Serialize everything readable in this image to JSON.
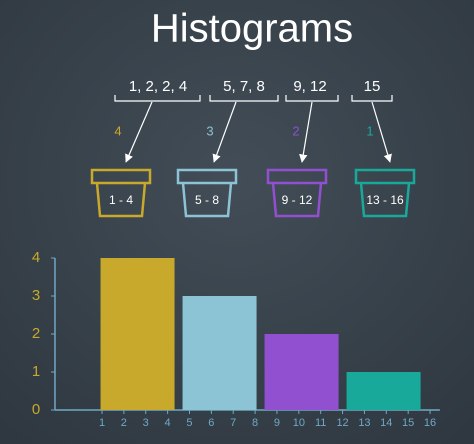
{
  "title": "Histograms",
  "groups": [
    "1, 2, 2, 4",
    "5, 7, 8",
    "9, 12",
    "15"
  ],
  "buckets": [
    "1 - 4",
    "5 - 8",
    "9 - 12",
    "13 - 16"
  ],
  "chart_data": {
    "type": "histogram",
    "bins": [
      0.75,
      4.5,
      8.25,
      12,
      15.75
    ],
    "values": [
      4,
      3,
      2,
      1
    ],
    "colors": [
      "#c8a92b",
      "#8cc3d5",
      "#9150cf",
      "#19a99b"
    ],
    "axis_color": "#6fa9c6",
    "xlim": [
      -1.15,
      16.45
    ],
    "ylim": [
      0,
      4
    ],
    "xticks": [
      1,
      2,
      3,
      4,
      5,
      6,
      7,
      8,
      9,
      10,
      11,
      12,
      13,
      14,
      15,
      16
    ],
    "yticks": [
      0,
      1,
      2,
      3,
      4
    ]
  }
}
